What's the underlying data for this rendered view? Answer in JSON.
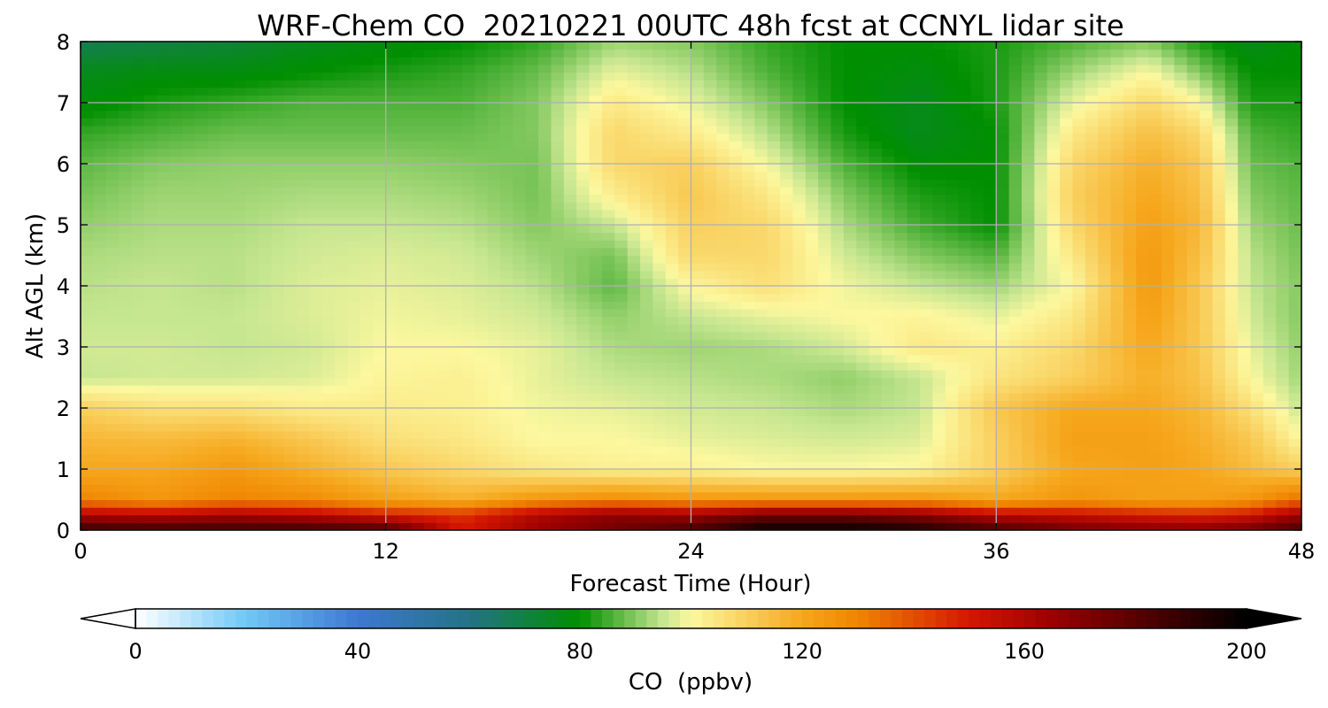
{
  "chart_data": {
    "type": "heatmap",
    "title": "WRF-Chem CO  20210221 00UTC 48h fcst at CCNYL lidar site",
    "xlabel": "Forecast Time (Hour)",
    "ylabel": "Alt AGL (km)",
    "xlim": [
      0,
      48
    ],
    "ylim": [
      0,
      8
    ],
    "x_ticks": [
      "0",
      "12",
      "24",
      "36",
      "48"
    ],
    "y_ticks": [
      "0",
      "1",
      "2",
      "3",
      "4",
      "5",
      "6",
      "7",
      "8"
    ],
    "grid": true,
    "x": [
      0,
      3,
      6,
      9,
      12,
      15,
      18,
      21,
      24,
      27,
      30,
      33,
      36,
      39,
      42,
      44,
      46,
      48
    ],
    "y": [
      0,
      0.25,
      0.5,
      1,
      1.5,
      2,
      2.5,
      3,
      3.5,
      4,
      4.5,
      5,
      5.5,
      6,
      6.5,
      7,
      7.5,
      8
    ],
    "z_ppbv": [
      [
        190,
        188,
        188,
        188,
        185,
        150,
        165,
        175,
        185,
        200,
        200,
        195,
        185,
        175,
        170,
        170,
        175,
        185
      ],
      [
        160,
        158,
        162,
        158,
        150,
        145,
        160,
        168,
        165,
        175,
        175,
        170,
        158,
        155,
        150,
        148,
        152,
        165
      ],
      [
        130,
        125,
        130,
        128,
        122,
        118,
        125,
        128,
        125,
        125,
        125,
        125,
        120,
        125,
        122,
        122,
        125,
        135
      ],
      [
        120,
        120,
        124,
        118,
        112,
        108,
        104,
        102,
        102,
        100,
        100,
        101,
        110,
        120,
        122,
        120,
        115,
        110
      ],
      [
        116,
        115,
        117,
        112,
        106,
        104,
        100,
        100,
        98,
        97,
        96,
        97,
        110,
        122,
        122,
        118,
        112,
        100
      ],
      [
        110,
        106,
        106,
        103,
        103,
        102,
        99,
        98,
        96,
        95,
        93,
        95,
        112,
        120,
        120,
        116,
        106,
        95
      ],
      [
        95,
        96,
        96,
        97,
        101,
        102,
        98,
        95,
        94,
        93,
        91,
        95,
        105,
        110,
        118,
        113,
        100,
        92
      ],
      [
        96,
        96,
        95,
        96,
        100,
        100,
        98,
        93,
        92,
        93,
        96,
        104,
        102,
        108,
        120,
        112,
        98,
        91
      ],
      [
        95,
        95,
        95,
        97,
        99,
        98,
        96,
        91,
        95,
        98,
        100,
        101,
        98,
        104,
        122,
        112,
        96,
        90
      ],
      [
        94,
        95,
        94,
        97,
        98,
        97,
        94,
        87,
        101,
        106,
        99,
        95,
        92,
        100,
        124,
        112,
        95,
        90
      ],
      [
        93,
        94,
        94,
        96,
        97,
        96,
        92,
        89,
        108,
        108,
        96,
        90,
        86,
        104,
        124,
        114,
        94,
        89
      ],
      [
        91,
        93,
        93,
        95,
        95,
        94,
        90,
        95,
        110,
        108,
        93,
        85,
        80,
        108,
        122,
        116,
        92,
        88
      ],
      [
        89,
        92,
        92,
        93,
        93,
        92,
        89,
        103,
        112,
        104,
        90,
        82,
        80,
        110,
        120,
        114,
        90,
        87
      ],
      [
        87,
        90,
        91,
        91,
        91,
        90,
        89,
        108,
        110,
        99,
        86,
        79,
        80,
        108,
        118,
        112,
        88,
        86
      ],
      [
        84,
        86,
        88,
        88,
        88,
        88,
        90,
        108,
        103,
        94,
        82,
        76,
        80,
        104,
        114,
        108,
        86,
        84
      ],
      [
        78,
        82,
        84,
        86,
        86,
        86,
        90,
        104,
        98,
        90,
        80,
        76,
        82,
        98,
        108,
        100,
        82,
        82
      ],
      [
        76,
        78,
        78,
        80,
        82,
        84,
        88,
        98,
        94,
        86,
        80,
        78,
        82,
        92,
        100,
        90,
        80,
        80
      ],
      [
        68,
        70,
        72,
        76,
        78,
        80,
        84,
        92,
        90,
        84,
        80,
        80,
        82,
        86,
        90,
        82,
        76,
        80
      ]
    ],
    "colorbar": {
      "label": "CO  (ppbv)",
      "min": 0,
      "max": 200,
      "ticks": [
        "0",
        "40",
        "80",
        "120",
        "160",
        "200"
      ],
      "extend": "both",
      "colors": {
        "0": "#ffffff",
        "20": "#6fc8f5",
        "40": "#3e78d2",
        "60": "#237386",
        "80": "#008f00",
        "95": "#c6e690",
        "100": "#fcf89f",
        "120": "#f6a71c",
        "130": "#f08500",
        "150": "#d41700",
        "165": "#9c0000",
        "200": "#000000"
      }
    }
  }
}
